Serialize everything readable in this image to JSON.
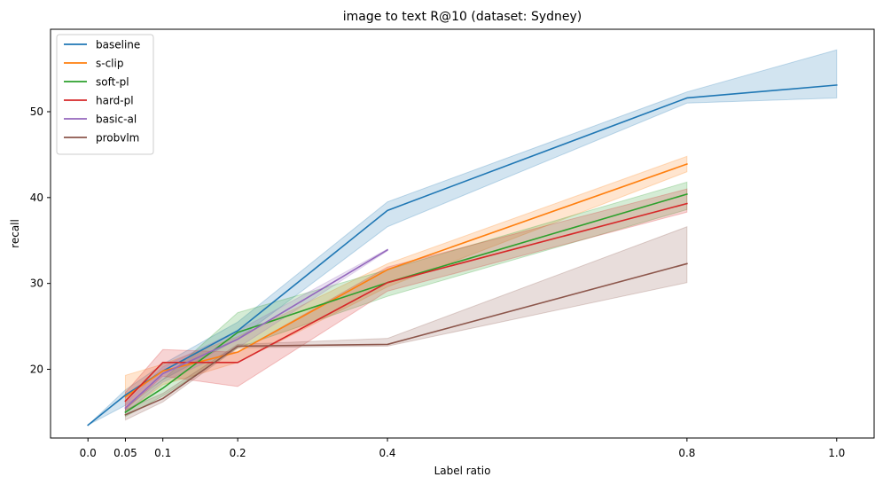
{
  "chart_data": {
    "type": "line",
    "title": "image to text R@10 (dataset: Sydney)",
    "xlabel": "Label ratio",
    "ylabel": "recall",
    "xlim": [
      -0.05,
      1.05
    ],
    "ylim": [
      12.0,
      59.6
    ],
    "x_ticks": [
      0.0,
      0.05,
      0.1,
      0.2,
      0.4,
      0.8,
      1.0
    ],
    "x_tick_labels": [
      "0.0",
      "0.05",
      "0.1",
      "0.2",
      "0.4",
      "0.8",
      "1.0"
    ],
    "y_ticks": [
      20,
      30,
      40,
      50
    ],
    "y_tick_labels": [
      "20",
      "30",
      "40",
      "50"
    ],
    "legend_position": "top-left",
    "series": [
      {
        "name": "baseline",
        "color": "#1f77b4",
        "x": [
          0.0,
          0.05,
          0.1,
          0.2,
          0.4,
          0.8,
          1.0
        ],
        "y": [
          13.5,
          17.0,
          19.8,
          24.5,
          38.5,
          51.6,
          53.1
        ],
        "lower": [
          13.5,
          15.8,
          18.8,
          23.5,
          36.6,
          51.0,
          51.6
        ],
        "upper": [
          13.5,
          17.6,
          20.6,
          25.5,
          39.5,
          52.3,
          57.2
        ]
      },
      {
        "name": "s-clip",
        "color": "#ff7f0e",
        "x": [
          0.05,
          0.1,
          0.2,
          0.4,
          0.8
        ],
        "y": [
          16.8,
          19.8,
          22.0,
          31.6,
          43.9
        ],
        "lower": [
          15.0,
          18.2,
          20.8,
          29.6,
          43.0
        ],
        "upper": [
          19.3,
          20.6,
          23.8,
          32.3,
          44.8
        ]
      },
      {
        "name": "soft-pl",
        "color": "#2ca02c",
        "x": [
          0.05,
          0.1,
          0.2,
          0.4,
          0.8
        ],
        "y": [
          15.0,
          17.8,
          24.3,
          30.1,
          40.4
        ],
        "lower": [
          14.5,
          16.9,
          22.5,
          28.5,
          38.6
        ],
        "upper": [
          15.5,
          18.8,
          26.6,
          31.6,
          41.8
        ]
      },
      {
        "name": "hard-pl",
        "color": "#d62728",
        "x": [
          0.05,
          0.1,
          0.2,
          0.4,
          0.8
        ],
        "y": [
          16.3,
          20.8,
          20.8,
          30.1,
          39.3
        ],
        "lower": [
          15.3,
          19.2,
          18.0,
          29.1,
          38.3
        ],
        "upper": [
          17.3,
          22.3,
          22.0,
          31.9,
          41.0
        ]
      },
      {
        "name": "basic-al",
        "color": "#9467bd",
        "x": [
          0.05,
          0.1,
          0.2,
          0.4
        ],
        "y": [
          15.5,
          19.5,
          23.5,
          33.9
        ],
        "lower": [
          15.0,
          18.5,
          22.5,
          33.8
        ],
        "upper": [
          16.0,
          20.3,
          24.5,
          34.0
        ]
      },
      {
        "name": "probvlm",
        "color": "#8c564b",
        "x": [
          0.05,
          0.1,
          0.2,
          0.4,
          0.8
        ],
        "y": [
          14.7,
          16.6,
          22.7,
          22.9,
          32.3
        ],
        "lower": [
          14.1,
          16.2,
          22.5,
          22.7,
          30.1
        ],
        "upper": [
          15.3,
          17.2,
          22.9,
          23.6,
          36.6
        ]
      }
    ]
  }
}
